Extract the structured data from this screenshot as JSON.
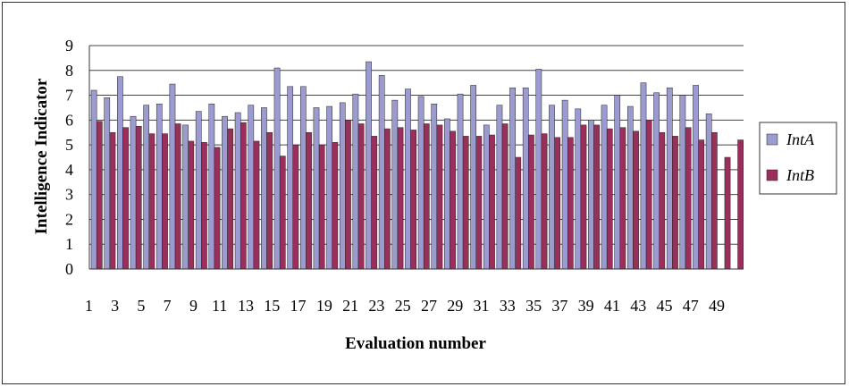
{
  "chart_data": {
    "type": "bar",
    "xlabel": "Evaluation number",
    "ylabel": "Intelligence Indicator",
    "ylim": [
      0,
      9
    ],
    "yticks": [
      0,
      1,
      2,
      3,
      4,
      5,
      6,
      7,
      8,
      9
    ],
    "grid": true,
    "legend_position": "right",
    "categories": [
      1,
      2,
      3,
      4,
      5,
      6,
      7,
      8,
      9,
      10,
      11,
      12,
      13,
      14,
      15,
      16,
      17,
      18,
      19,
      20,
      21,
      22,
      23,
      24,
      25,
      26,
      27,
      28,
      29,
      30,
      31,
      32,
      33,
      34,
      35,
      36,
      37,
      38,
      39,
      40,
      41,
      42,
      43,
      44,
      45,
      46,
      47,
      48,
      49,
      50
    ],
    "x_tick_labels": [
      "1",
      "3",
      "5",
      "7",
      "9",
      "11",
      "13",
      "15",
      "17",
      "19",
      "21",
      "23",
      "25",
      "27",
      "29",
      "31",
      "33",
      "35",
      "37",
      "39",
      "41",
      "43",
      "45",
      "47",
      "49"
    ],
    "series": [
      {
        "name": "IntA",
        "color": "#9b9bd0",
        "values": [
          7.2,
          6.9,
          7.75,
          6.15,
          6.6,
          6.65,
          7.45,
          5.8,
          6.35,
          6.65,
          6.15,
          6.3,
          6.6,
          6.5,
          8.1,
          7.35,
          7.35,
          6.5,
          6.55,
          6.7,
          7.05,
          8.35,
          7.8,
          6.8,
          7.25,
          6.95,
          6.65,
          6.05,
          7.05,
          7.4,
          5.8,
          6.6,
          7.3,
          7.3,
          8.05,
          6.6,
          6.8,
          6.45,
          6.0,
          6.6,
          7.0,
          6.55,
          7.5,
          7.1,
          7.3,
          7.0,
          7.4,
          6.25,
          null,
          null
        ]
      },
      {
        "name": "IntB",
        "color": "#9b2f5c",
        "values": [
          5.95,
          5.5,
          5.7,
          5.75,
          5.45,
          5.45,
          5.85,
          5.15,
          5.1,
          4.9,
          5.65,
          5.9,
          5.15,
          5.5,
          4.55,
          5.0,
          5.5,
          5.0,
          5.1,
          6.0,
          5.85,
          5.35,
          5.65,
          5.7,
          5.6,
          5.85,
          5.8,
          5.55,
          5.35,
          5.35,
          5.4,
          5.85,
          4.5,
          5.4,
          5.45,
          5.3,
          5.3,
          5.8,
          5.8,
          5.65,
          5.7,
          5.55,
          6.0,
          5.5,
          5.35,
          5.7,
          5.2,
          5.5,
          4.5,
          5.2
        ]
      }
    ]
  }
}
